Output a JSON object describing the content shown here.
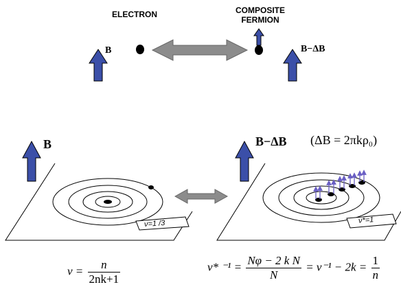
{
  "top": {
    "electron_label": "ELECTRON",
    "composite_label_line1": "COMPOSITE",
    "composite_label_line2": "FERMION",
    "b_label": "B",
    "b_minus_db_label": "B−ΔB"
  },
  "bottom": {
    "left_b_label": "B",
    "right_b_label": "B−ΔB",
    "delta_b_eq": "(ΔB = 2πkρ₀)",
    "left_filling_tag": "ν=1 /3",
    "right_filling_tag": "ν*=1"
  },
  "equations": {
    "left_lhs": "ν =",
    "left_num": "n",
    "left_den": "2nk+1",
    "right_lhs": "ν* ⁻¹ =",
    "right_num": "Nφ − 2 k N",
    "right_den": "N",
    "right_mid": "= ν⁻¹ − 2k =",
    "right_num2": "1",
    "right_den2": "n"
  },
  "colors": {
    "arrow_blue": "#3b4fa8",
    "arrow_gray": "#8c8c8c",
    "flux_purple": "#6a5fc4"
  }
}
